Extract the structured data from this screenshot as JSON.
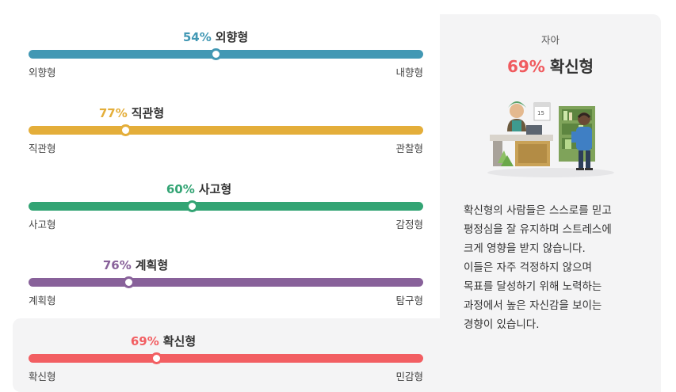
{
  "traits": [
    {
      "percent": "54%",
      "name": "외향형",
      "left": "외향형",
      "right": "내향형",
      "value": 0.46,
      "color": "#4298b4"
    },
    {
      "percent": "77%",
      "name": "직관형",
      "left": "직관형",
      "right": "관찰형",
      "value": 0.23,
      "color": "#e4ae3a"
    },
    {
      "percent": "60%",
      "name": "사고형",
      "left": "사고형",
      "right": "감정형",
      "value": 0.4,
      "color": "#33a474"
    },
    {
      "percent": "76%",
      "name": "계획형",
      "left": "계획형",
      "right": "탐구형",
      "value": 0.24,
      "color": "#88619a"
    },
    {
      "percent": "69%",
      "name": "확신형",
      "left": "확신형",
      "right": "민감형",
      "value": 0.31,
      "color": "#f25e62"
    }
  ],
  "panel": {
    "category": "자아",
    "percent": "69%",
    "name": "확신형",
    "illustration_icon": "confident-people-illustration",
    "description": [
      "확신형의 사람들은 스스로를 믿고",
      "평정심을 잘 유지하며 스트레스에",
      "크게 영향을 받지 않습니다.",
      "이들은 자주 걱정하지 않으며",
      "목표를 달성하기 위해 노력하는",
      "과정에서 높은 자신감을 보이는",
      "경향이 있습니다."
    ]
  }
}
